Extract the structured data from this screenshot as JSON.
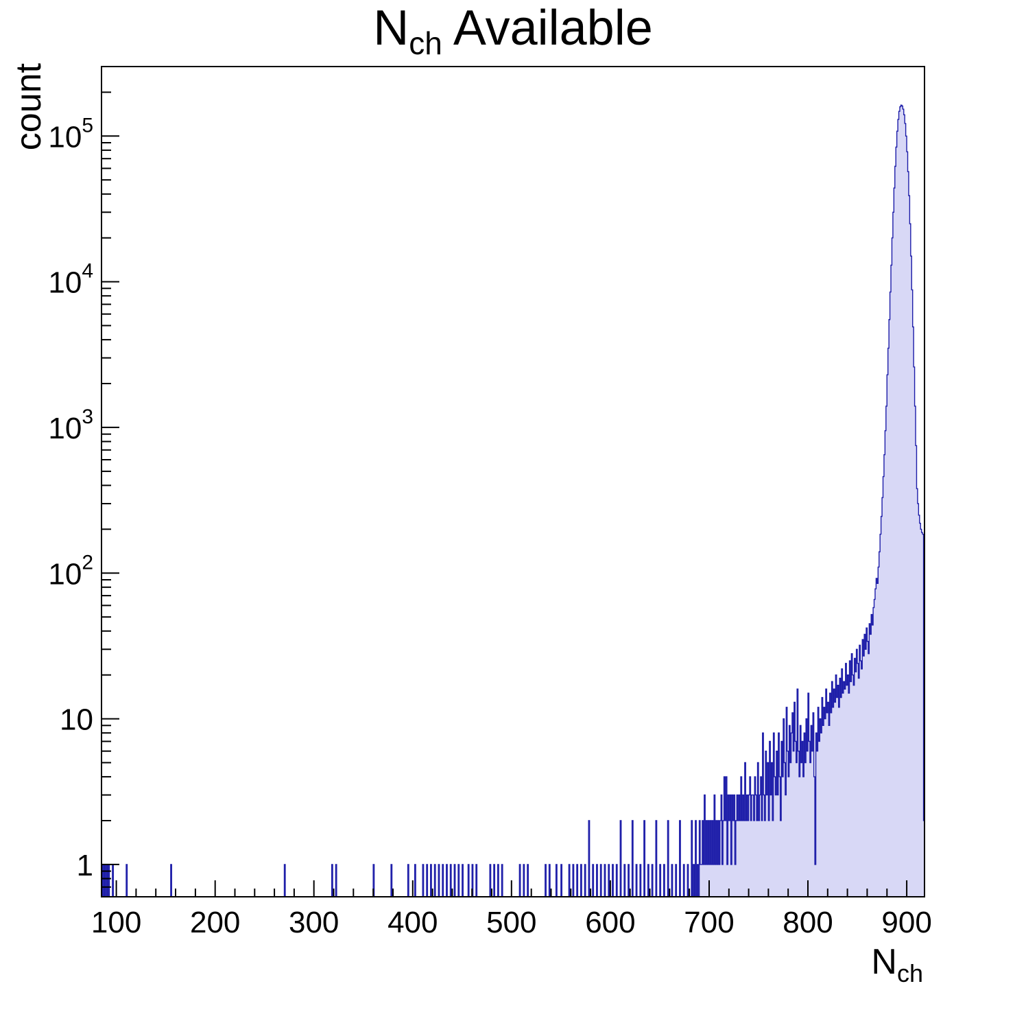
{
  "title": {
    "main": "N",
    "sub": "ch",
    "suffix": " Available"
  },
  "axis_titles": {
    "y": "count",
    "x_main": "N",
    "x_sub": "ch"
  },
  "style": {
    "hist_fill": "#d8d8f6",
    "hist_stroke": "#1c1ca8",
    "frame_color": "#000000",
    "tick_color": "#000000",
    "text_color": "#000000"
  },
  "chart_data": {
    "type": "histogram",
    "title": "N_ch Available",
    "xlabel": "N_ch",
    "ylabel": "count",
    "xscale": "linear",
    "yscale": "log",
    "xlim": [
      85,
      918
    ],
    "ylim": [
      0.6,
      300000
    ],
    "x_major_tick_step": 100,
    "x_minor_tick_step": 20,
    "x_major_ticks": [
      100,
      200,
      300,
      400,
      500,
      600,
      700,
      800,
      900
    ],
    "y_major_ticks": [
      1,
      10,
      100,
      1000,
      10000,
      100000
    ],
    "bin_width": 1,
    "bins": [
      [
        86,
        1
      ],
      [
        88,
        1
      ],
      [
        90,
        1
      ],
      [
        92,
        1
      ],
      [
        96,
        1
      ],
      [
        110,
        1
      ],
      [
        155,
        1
      ],
      [
        270,
        1
      ],
      [
        318,
        1
      ],
      [
        322,
        1
      ],
      [
        360,
        1
      ],
      [
        378,
        1
      ],
      [
        395,
        1
      ],
      [
        402,
        1
      ],
      [
        410,
        1
      ],
      [
        414,
        1
      ],
      [
        418,
        1
      ],
      [
        422,
        1
      ],
      [
        426,
        1
      ],
      [
        430,
        1
      ],
      [
        434,
        1
      ],
      [
        438,
        1
      ],
      [
        442,
        1
      ],
      [
        446,
        1
      ],
      [
        450,
        1
      ],
      [
        456,
        1
      ],
      [
        460,
        1
      ],
      [
        464,
        1
      ],
      [
        478,
        1
      ],
      [
        482,
        1
      ],
      [
        486,
        1
      ],
      [
        490,
        1
      ],
      [
        508,
        1
      ],
      [
        512,
        1
      ],
      [
        516,
        1
      ],
      [
        534,
        1
      ],
      [
        538,
        1
      ],
      [
        545,
        1
      ],
      [
        550,
        1
      ],
      [
        558,
        1
      ],
      [
        562,
        1
      ],
      [
        566,
        1
      ],
      [
        570,
        1
      ],
      [
        574,
        1
      ],
      [
        578,
        2
      ],
      [
        582,
        1
      ],
      [
        586,
        1
      ],
      [
        590,
        1
      ],
      [
        594,
        1
      ],
      [
        598,
        1
      ],
      [
        602,
        1
      ],
      [
        606,
        1
      ],
      [
        610,
        2
      ],
      [
        614,
        1
      ],
      [
        618,
        1
      ],
      [
        622,
        2
      ],
      [
        626,
        1
      ],
      [
        630,
        1
      ],
      [
        634,
        2
      ],
      [
        638,
        1
      ],
      [
        642,
        1
      ],
      [
        646,
        2
      ],
      [
        650,
        1
      ],
      [
        654,
        1
      ],
      [
        658,
        2
      ],
      [
        662,
        1
      ],
      [
        666,
        1
      ],
      [
        670,
        2
      ],
      [
        674,
        1
      ],
      [
        678,
        1
      ],
      [
        682,
        2
      ],
      [
        684,
        1
      ],
      [
        686,
        2
      ],
      [
        688,
        1
      ],
      [
        690,
        2
      ],
      [
        691,
        1
      ],
      [
        692,
        1
      ],
      [
        693,
        2
      ],
      [
        694,
        1
      ],
      [
        695,
        3
      ],
      [
        696,
        1
      ],
      [
        697,
        2
      ],
      [
        698,
        1
      ],
      [
        699,
        2
      ],
      [
        700,
        1
      ],
      [
        701,
        2
      ],
      [
        702,
        1
      ],
      [
        703,
        2
      ],
      [
        704,
        1
      ],
      [
        705,
        3
      ],
      [
        706,
        1
      ],
      [
        707,
        2
      ],
      [
        708,
        1
      ],
      [
        709,
        2
      ],
      [
        710,
        1
      ],
      [
        711,
        2
      ],
      [
        712,
        3
      ],
      [
        713,
        1
      ],
      [
        714,
        2
      ],
      [
        715,
        4
      ],
      [
        716,
        2
      ],
      [
        717,
        4
      ],
      [
        718,
        1
      ],
      [
        719,
        3
      ],
      [
        720,
        2
      ],
      [
        721,
        3
      ],
      [
        722,
        1
      ],
      [
        723,
        3
      ],
      [
        724,
        2
      ],
      [
        725,
        3
      ],
      [
        726,
        1
      ],
      [
        727,
        2
      ],
      [
        728,
        3
      ],
      [
        729,
        2
      ],
      [
        730,
        3
      ],
      [
        731,
        2
      ],
      [
        732,
        4
      ],
      [
        733,
        2
      ],
      [
        734,
        3
      ],
      [
        735,
        2
      ],
      [
        736,
        5
      ],
      [
        737,
        2
      ],
      [
        738,
        3
      ],
      [
        739,
        2
      ],
      [
        740,
        3
      ],
      [
        741,
        4
      ],
      [
        742,
        2
      ],
      [
        743,
        3
      ],
      [
        744,
        3
      ],
      [
        745,
        2
      ],
      [
        746,
        4
      ],
      [
        747,
        3
      ],
      [
        748,
        2
      ],
      [
        749,
        5
      ],
      [
        750,
        2
      ],
      [
        751,
        3
      ],
      [
        752,
        4
      ],
      [
        753,
        2
      ],
      [
        754,
        8
      ],
      [
        755,
        3
      ],
      [
        756,
        2
      ],
      [
        757,
        6
      ],
      [
        758,
        3
      ],
      [
        759,
        5
      ],
      [
        760,
        2
      ],
      [
        761,
        7
      ],
      [
        762,
        3
      ],
      [
        763,
        5
      ],
      [
        764,
        2
      ],
      [
        765,
        8
      ],
      [
        766,
        4
      ],
      [
        767,
        3
      ],
      [
        768,
        6
      ],
      [
        769,
        3
      ],
      [
        770,
        8
      ],
      [
        771,
        4
      ],
      [
        772,
        2
      ],
      [
        773,
        7
      ],
      [
        774,
        4
      ],
      [
        775,
        10
      ],
      [
        776,
        5
      ],
      [
        777,
        3
      ],
      [
        778,
        12
      ],
      [
        779,
        6
      ],
      [
        780,
        4
      ],
      [
        781,
        9
      ],
      [
        782,
        5
      ],
      [
        783,
        8
      ],
      [
        784,
        11
      ],
      [
        785,
        6
      ],
      [
        786,
        13
      ],
      [
        787,
        7
      ],
      [
        788,
        5
      ],
      [
        789,
        16
      ],
      [
        790,
        6
      ],
      [
        791,
        4
      ],
      [
        792,
        9
      ],
      [
        793,
        5
      ],
      [
        794,
        7
      ],
      [
        795,
        4
      ],
      [
        796,
        8
      ],
      [
        797,
        5
      ],
      [
        798,
        10
      ],
      [
        799,
        6
      ],
      [
        800,
        15
      ],
      [
        801,
        7
      ],
      [
        802,
        5
      ],
      [
        803,
        9
      ],
      [
        804,
        6
      ],
      [
        805,
        11
      ],
      [
        806,
        4
      ],
      [
        807,
        1
      ],
      [
        808,
        8
      ],
      [
        809,
        6
      ],
      [
        810,
        12
      ],
      [
        811,
        7
      ],
      [
        812,
        10
      ],
      [
        813,
        8
      ],
      [
        814,
        14
      ],
      [
        815,
        9
      ],
      [
        816,
        12
      ],
      [
        817,
        10
      ],
      [
        818,
        16
      ],
      [
        819,
        11
      ],
      [
        820,
        13
      ],
      [
        821,
        9
      ],
      [
        822,
        15
      ],
      [
        823,
        11
      ],
      [
        824,
        18
      ],
      [
        825,
        12
      ],
      [
        826,
        16
      ],
      [
        827,
        13
      ],
      [
        828,
        20
      ],
      [
        829,
        14
      ],
      [
        830,
        17
      ],
      [
        831,
        12
      ],
      [
        832,
        19
      ],
      [
        833,
        14
      ],
      [
        834,
        22
      ],
      [
        835,
        15
      ],
      [
        836,
        18
      ],
      [
        837,
        16
      ],
      [
        838,
        24
      ],
      [
        839,
        17
      ],
      [
        840,
        20
      ],
      [
        841,
        15
      ],
      [
        842,
        25
      ],
      [
        843,
        18
      ],
      [
        844,
        28
      ],
      [
        845,
        20
      ],
      [
        846,
        17
      ],
      [
        847,
        26
      ],
      [
        848,
        21
      ],
      [
        849,
        30
      ],
      [
        850,
        24
      ],
      [
        851,
        19
      ],
      [
        852,
        32
      ],
      [
        853,
        25
      ],
      [
        854,
        22
      ],
      [
        855,
        35
      ],
      [
        856,
        27
      ],
      [
        857,
        38
      ],
      [
        858,
        30
      ],
      [
        859,
        42
      ],
      [
        860,
        34
      ],
      [
        861,
        28
      ],
      [
        862,
        45
      ],
      [
        863,
        38
      ],
      [
        864,
        52
      ],
      [
        865,
        44
      ],
      [
        866,
        58
      ],
      [
        867,
        66
      ],
      [
        868,
        78
      ],
      [
        869,
        92
      ],
      [
        870,
        85
      ],
      [
        871,
        110
      ],
      [
        872,
        140
      ],
      [
        873,
        185
      ],
      [
        874,
        245
      ],
      [
        875,
        330
      ],
      [
        876,
        460
      ],
      [
        877,
        650
      ],
      [
        878,
        950
      ],
      [
        879,
        1400
      ],
      [
        880,
        2300
      ],
      [
        881,
        3500
      ],
      [
        882,
        5500
      ],
      [
        883,
        8500
      ],
      [
        884,
        13000
      ],
      [
        885,
        20000
      ],
      [
        886,
        30000
      ],
      [
        887,
        44000
      ],
      [
        888,
        62000
      ],
      [
        889,
        84000
      ],
      [
        890,
        108000
      ],
      [
        891,
        130000
      ],
      [
        892,
        148000
      ],
      [
        893,
        159000
      ],
      [
        894,
        163000
      ],
      [
        895,
        161000
      ],
      [
        896,
        153000
      ],
      [
        897,
        140000
      ],
      [
        898,
        122000
      ],
      [
        899,
        100000
      ],
      [
        900,
        78000
      ],
      [
        901,
        57000
      ],
      [
        902,
        39000
      ],
      [
        903,
        25000
      ],
      [
        904,
        15000
      ],
      [
        905,
        8800
      ],
      [
        906,
        4900
      ],
      [
        907,
        2600
      ],
      [
        908,
        1400
      ],
      [
        909,
        750
      ],
      [
        910,
        380
      ],
      [
        911,
        300
      ],
      [
        912,
        250
      ],
      [
        913,
        220
      ],
      [
        914,
        200
      ],
      [
        915,
        190
      ],
      [
        916,
        185
      ],
      [
        917,
        2
      ]
    ]
  }
}
